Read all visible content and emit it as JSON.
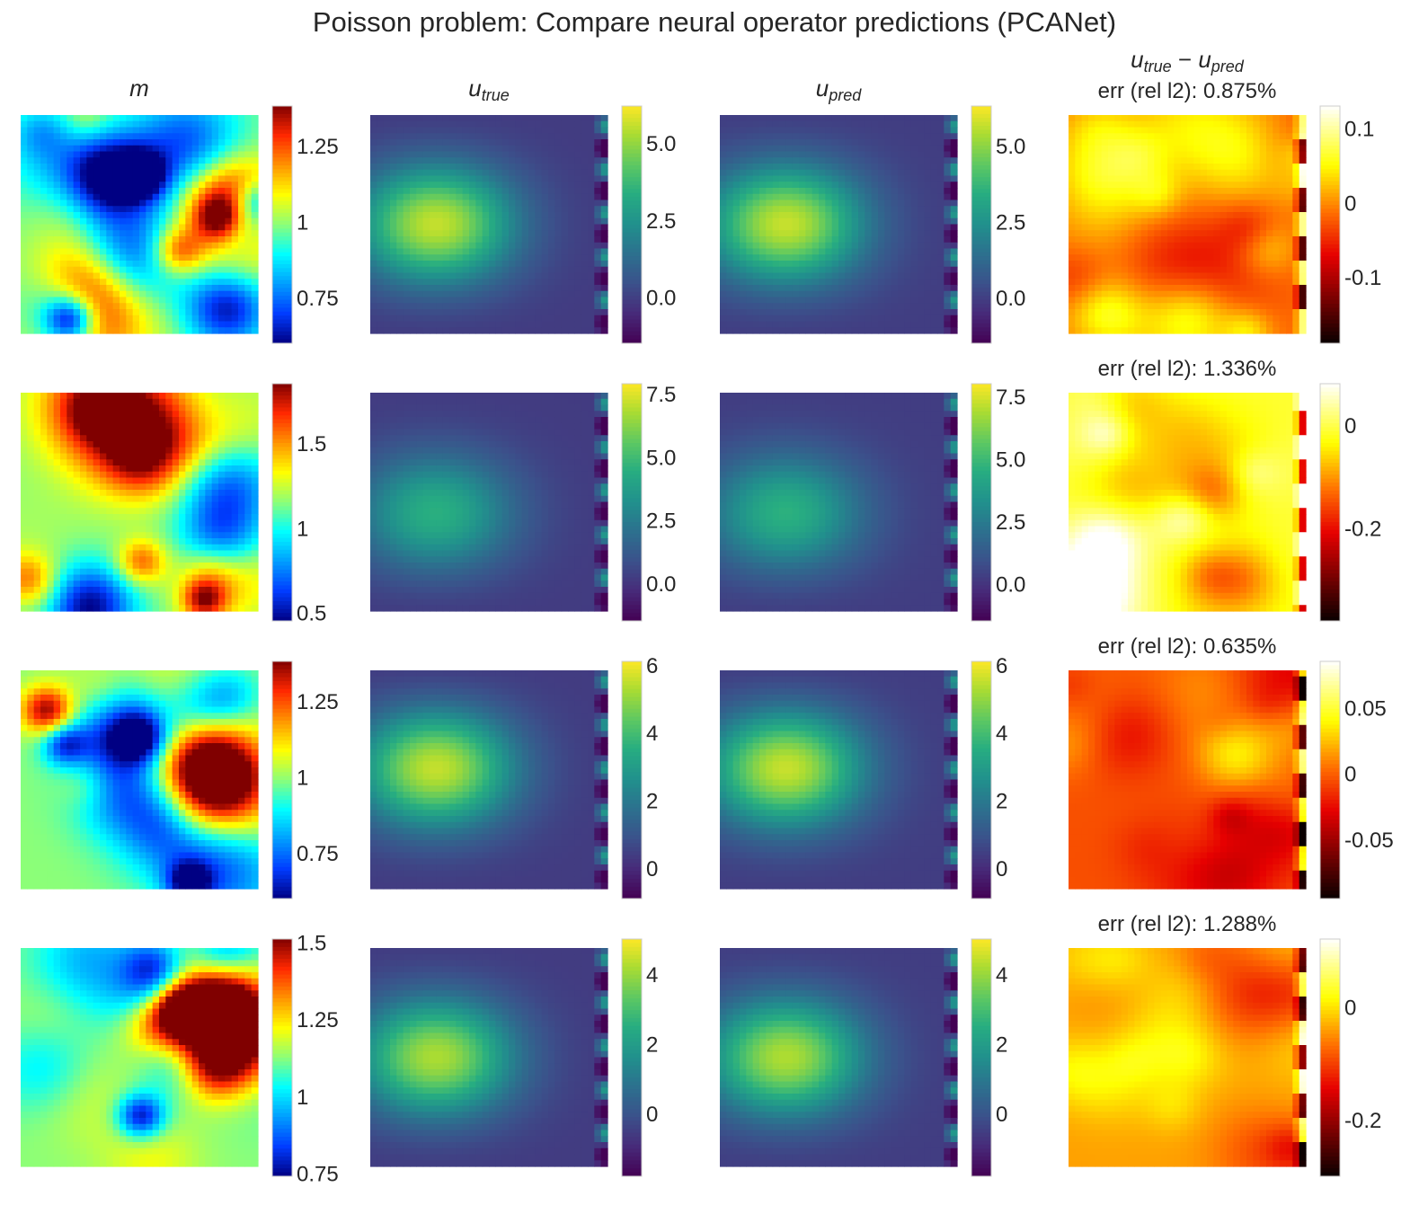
{
  "figure": {
    "title": "Poisson problem: Compare neural operator predictions (PCANet)"
  },
  "columns": [
    {
      "key": "m",
      "label_base": "m",
      "label_sub": ""
    },
    {
      "key": "u_true",
      "label_base": "u",
      "label_sub": "true"
    },
    {
      "key": "u_pred",
      "label_base": "u",
      "label_sub": "pred"
    },
    {
      "key": "diff",
      "label_base": "u",
      "label_sub": "true",
      "label_minus": "−",
      "label_base2": "u",
      "label_sub2": "pred"
    }
  ],
  "colormaps": {
    "m": "jet",
    "u_true": "viridis",
    "u_pred": "viridis",
    "diff": "hot"
  },
  "chart_data": [
    {
      "type": "heatmap",
      "row": 0,
      "error_label": "err (rel l2): 0.875%",
      "panels": {
        "m": {
          "vmin": 0.6,
          "vmax": 1.38,
          "ticks": [
            0.75,
            1,
            1.25
          ],
          "tick_labels": [
            "0.75",
            "1",
            "1.25"
          ]
        },
        "u_true": {
          "vmin": -1.5,
          "vmax": 6.2,
          "ticks": [
            0.0,
            2.5,
            5.0
          ],
          "tick_labels": [
            "0.0",
            "2.5",
            "5.0"
          ]
        },
        "u_pred": {
          "vmin": -1.5,
          "vmax": 6.3,
          "ticks": [
            0.0,
            2.5,
            5.0
          ],
          "tick_labels": [
            "0.0",
            "2.5",
            "5.0"
          ]
        },
        "diff": {
          "vmin": -0.19,
          "vmax": 0.13,
          "ticks": [
            -0.1,
            0,
            0.1
          ],
          "tick_labels": [
            "-0.1",
            "0",
            "0.1"
          ]
        }
      }
    },
    {
      "type": "heatmap",
      "row": 1,
      "error_label": "err (rel l2): 1.336%",
      "panels": {
        "m": {
          "vmin": 0.45,
          "vmax": 1.85,
          "ticks": [
            0.5,
            1,
            1.5
          ],
          "tick_labels": [
            "0.5",
            "1",
            "1.5"
          ]
        },
        "u_true": {
          "vmin": -1.5,
          "vmax": 7.9,
          "ticks": [
            0.0,
            2.5,
            5.0,
            7.5
          ],
          "tick_labels": [
            "0.0",
            "2.5",
            "5.0",
            "7.5"
          ]
        },
        "u_pred": {
          "vmin": -1.5,
          "vmax": 8.0,
          "ticks": [
            0.0,
            2.5,
            5.0,
            7.5
          ],
          "tick_labels": [
            "0.0",
            "2.5",
            "5.0",
            "7.5"
          ]
        },
        "diff": {
          "vmin": -0.38,
          "vmax": 0.08,
          "ticks": [
            -0.2,
            0
          ],
          "tick_labels": [
            "-0.2",
            "0"
          ]
        }
      }
    },
    {
      "type": "heatmap",
      "row": 2,
      "error_label": "err (rel l2): 0.635%",
      "panels": {
        "m": {
          "vmin": 0.6,
          "vmax": 1.38,
          "ticks": [
            0.75,
            1,
            1.25
          ],
          "tick_labels": [
            "0.75",
            "1",
            "1.25"
          ]
        },
        "u_true": {
          "vmin": -0.9,
          "vmax": 6.1,
          "ticks": [
            0,
            2,
            4,
            6
          ],
          "tick_labels": [
            "0",
            "2",
            "4",
            "6"
          ]
        },
        "u_pred": {
          "vmin": -0.9,
          "vmax": 6.1,
          "ticks": [
            0,
            2,
            4,
            6
          ],
          "tick_labels": [
            "0",
            "2",
            "4",
            "6"
          ]
        },
        "diff": {
          "vmin": -0.095,
          "vmax": 0.085,
          "ticks": [
            -0.05,
            0,
            0.05
          ],
          "tick_labels": [
            "-0.05",
            "0",
            "0.05"
          ]
        }
      }
    },
    {
      "type": "heatmap",
      "row": 3,
      "error_label": "err (rel l2): 1.288%",
      "panels": {
        "m": {
          "vmin": 0.74,
          "vmax": 1.51,
          "ticks": [
            0.75,
            1,
            1.25,
            1.5
          ],
          "tick_labels": [
            "0.75",
            "1",
            "1.25",
            "1.5"
          ]
        },
        "u_true": {
          "vmin": -1.8,
          "vmax": 5.0,
          "ticks": [
            0,
            2,
            4
          ],
          "tick_labels": [
            "0",
            "2",
            "4"
          ]
        },
        "u_pred": {
          "vmin": -1.8,
          "vmax": 5.0,
          "ticks": [
            0,
            2,
            4
          ],
          "tick_labels": [
            "0",
            "2",
            "4"
          ]
        },
        "diff": {
          "vmin": -0.3,
          "vmax": 0.12,
          "ticks": [
            -0.2,
            0
          ],
          "tick_labels": [
            "-0.2",
            "0"
          ]
        }
      }
    }
  ]
}
